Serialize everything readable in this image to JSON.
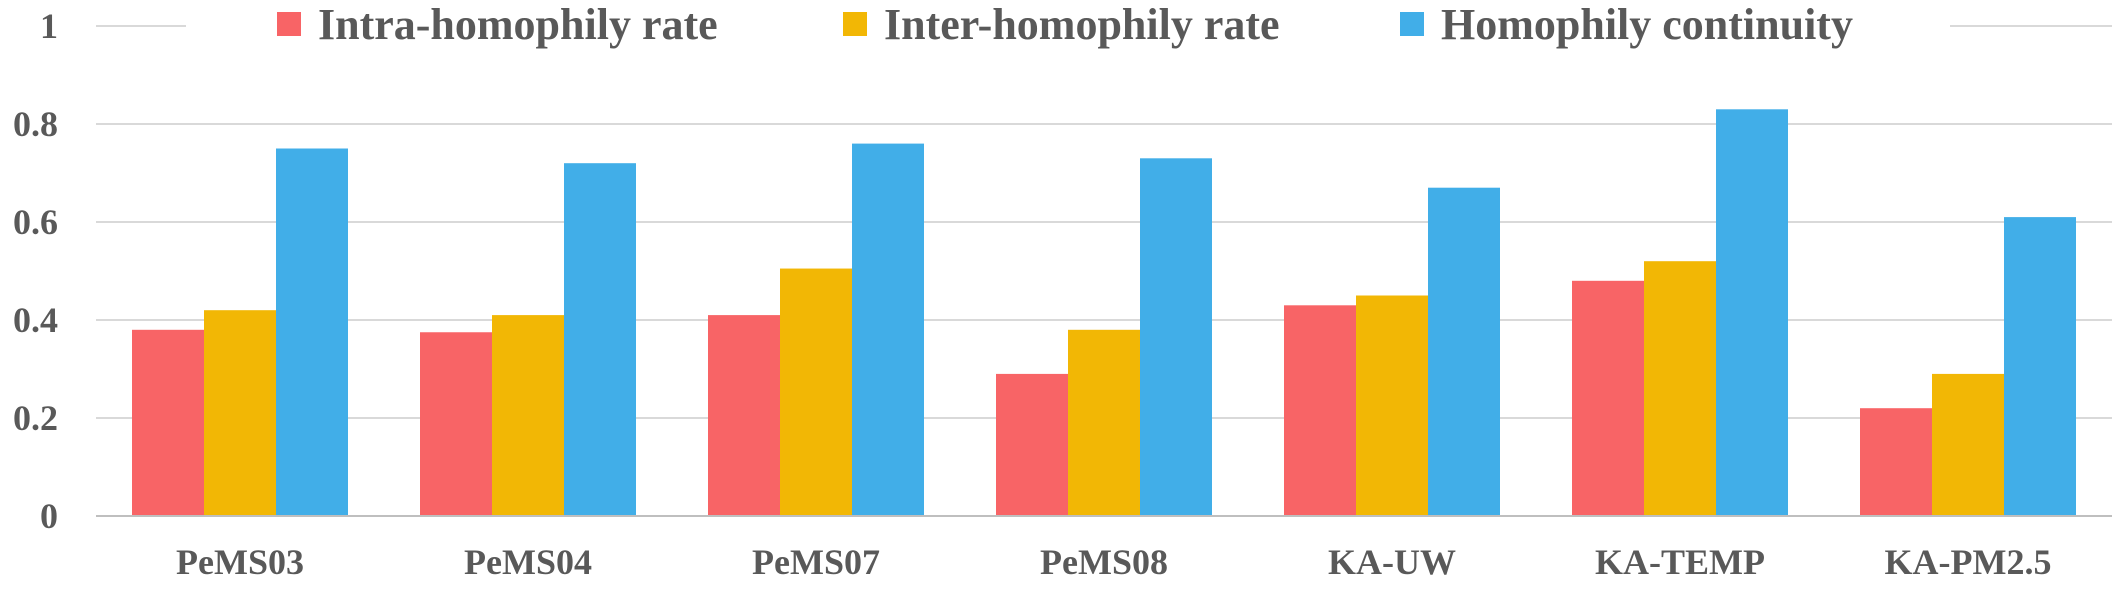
{
  "chart_data": {
    "type": "bar",
    "title": "",
    "xlabel": "",
    "ylabel": "",
    "ylim": [
      0,
      1
    ],
    "yticks": [
      0,
      0.2,
      0.4,
      0.6,
      0.8,
      1
    ],
    "ytick_labels": [
      "0",
      "0.2",
      "0.4",
      "0.6",
      "0.8",
      "1"
    ],
    "grid": true,
    "legend_position": "top",
    "categories": [
      "PeMS03",
      "PeMS04",
      "PeMS07",
      "PeMS08",
      "KA-UW",
      "KA-TEMP",
      "KA-PM2.5"
    ],
    "series": [
      {
        "name": "Intra-homophily rate",
        "color": "#f86466",
        "values": [
          0.38,
          0.375,
          0.41,
          0.29,
          0.43,
          0.48,
          0.22
        ]
      },
      {
        "name": "Inter-homophily rate",
        "color": "#f2b705",
        "values": [
          0.42,
          0.41,
          0.505,
          0.38,
          0.45,
          0.52,
          0.29
        ]
      },
      {
        "name": "Homophily continuity",
        "color": "#41aee8",
        "values": [
          0.75,
          0.72,
          0.76,
          0.73,
          0.67,
          0.83,
          0.61
        ]
      }
    ],
    "colors": {
      "grid": "#d9d9d9",
      "axis": "#bfbfbf",
      "text": "#595959"
    }
  }
}
